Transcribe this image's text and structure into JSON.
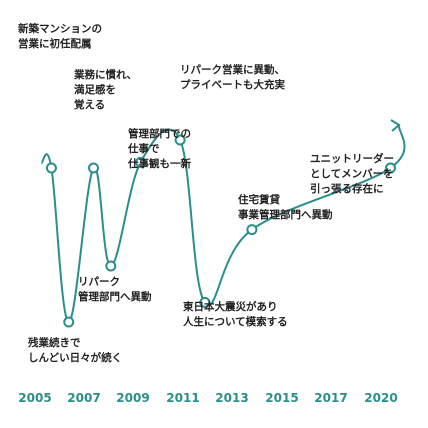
{
  "chart_data": {
    "type": "line",
    "title": "",
    "xlabel": "",
    "ylabel": "",
    "x_ticks": [
      "2005",
      "2007",
      "2009",
      "2011",
      "2013",
      "2015",
      "2017",
      "2020"
    ],
    "points": [
      {
        "x": 2005.3,
        "y": 60
      },
      {
        "x": 2006.0,
        "y": 5
      },
      {
        "x": 2007.0,
        "y": 60
      },
      {
        "x": 2007.7,
        "y": 25
      },
      {
        "x": 2008.9,
        "y": 62
      },
      {
        "x": 2010.5,
        "y": 70
      },
      {
        "x": 2011.5,
        "y": 12
      },
      {
        "x": 2013.4,
        "y": 38
      },
      {
        "x": 2019.0,
        "y": 60
      }
    ],
    "annotations": [
      {
        "lines": [
          "新築マンションの",
          "営業に初任配属"
        ]
      },
      {
        "lines": [
          "残業続きで",
          "しんどい日々が続く"
        ]
      },
      {
        "lines": [
          "業務に慣れ、",
          "満足感を",
          "覚える"
        ]
      },
      {
        "lines": [
          "リパーク",
          "管理部門へ異動"
        ]
      },
      {
        "lines": [
          "管理部門での",
          "仕事で",
          "仕事観も一新"
        ]
      },
      {
        "lines": [
          "リパーク営業に異動、",
          "プライベートも大充実"
        ]
      },
      {
        "lines": [
          "東日本大震災があり",
          "人生について模索する"
        ]
      },
      {
        "lines": [
          "住宅賃貸",
          "事業管理部門へ異動"
        ]
      },
      {
        "lines": [
          "ユニットリーダー",
          "としてメンバーを",
          "引っ張る存在に"
        ]
      }
    ],
    "line_color": "#2a8f8c",
    "grid": false
  }
}
